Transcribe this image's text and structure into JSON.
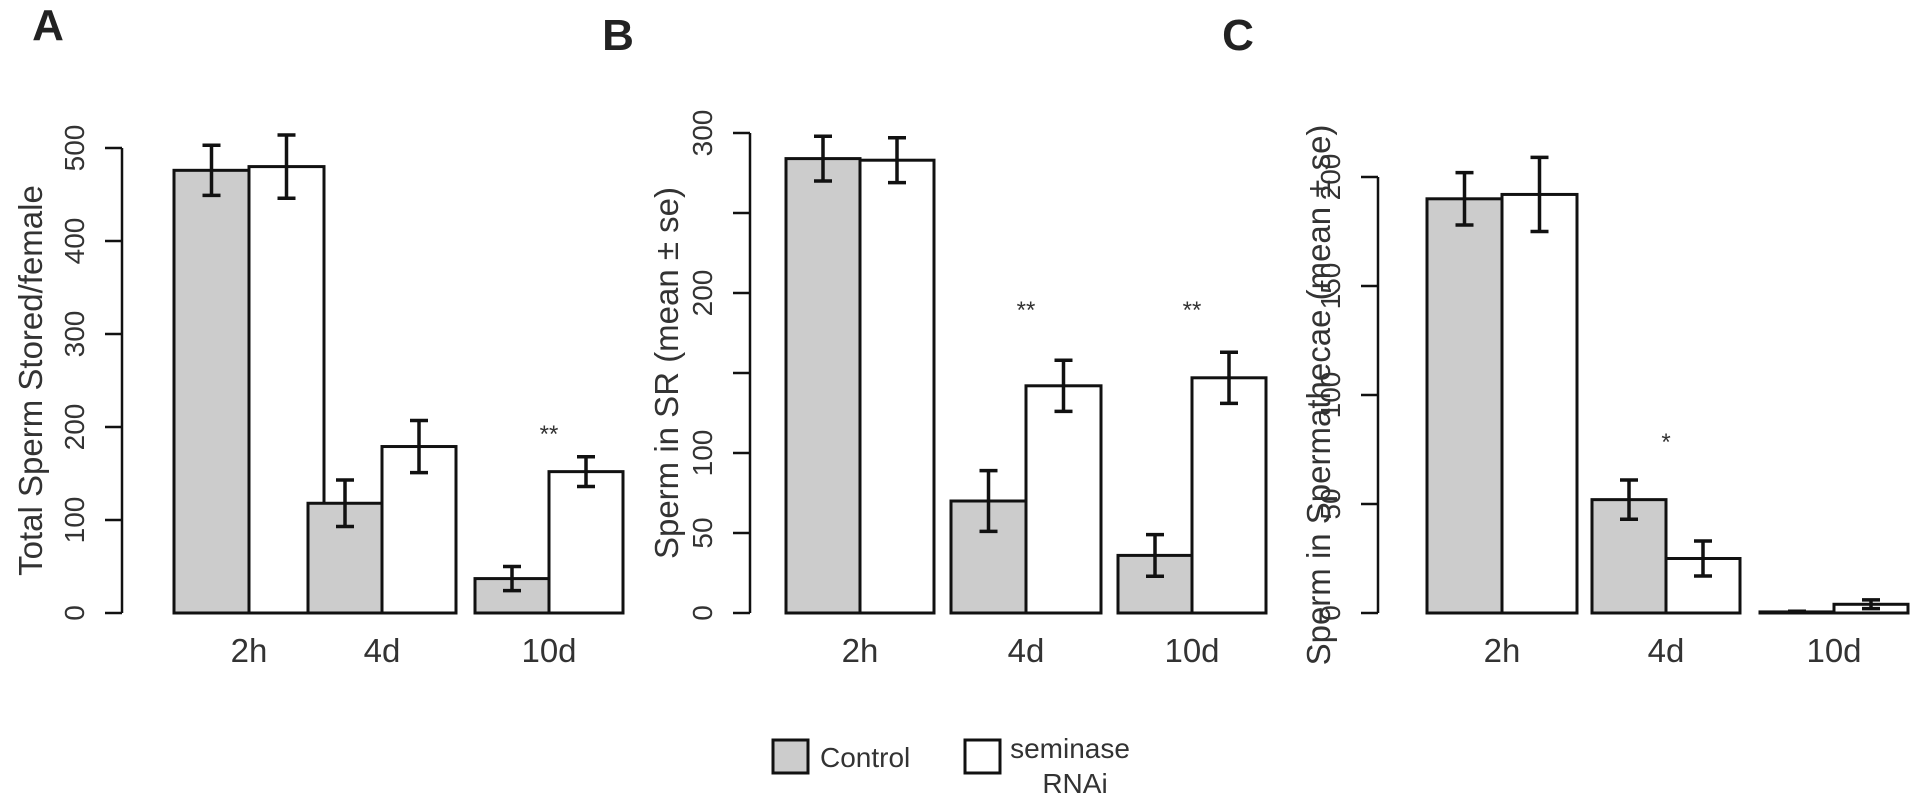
{
  "colors": {
    "control": "#cccccc",
    "treatment": "#ffffff",
    "stroke": "#111111"
  },
  "legend": {
    "items": [
      {
        "label": "Control"
      },
      {
        "label_lines": [
          "seminase",
          "RNAi"
        ]
      }
    ]
  },
  "chart_data": [
    {
      "panel": "A",
      "type": "bar",
      "ylabel": "Total Sperm Stored/female",
      "ylim": [
        0,
        520
      ],
      "yticks": [
        0,
        100,
        200,
        300,
        400,
        500
      ],
      "categories": [
        "2h",
        "4d",
        "10d"
      ],
      "series": [
        {
          "values": [
            476,
            118,
            37
          ],
          "errors": [
            27,
            25,
            13
          ]
        },
        {
          "values": [
            480,
            179,
            152
          ],
          "errors": [
            34,
            28,
            16
          ]
        }
      ],
      "annotations": [
        {
          "category": "10d",
          "text": "**"
        }
      ]
    },
    {
      "panel": "B",
      "type": "bar",
      "ylabel": "Sperm in SR (mean ± se)",
      "ylim": [
        0,
        300
      ],
      "yticks": [
        0,
        50,
        100,
        150,
        200,
        250,
        300
      ],
      "ytick_labels": [
        "0",
        "50",
        "100",
        "",
        "200",
        "",
        "300"
      ],
      "categories": [
        "2h",
        "4d",
        "10d"
      ],
      "series": [
        {
          "values": [
            284,
            70,
            36
          ],
          "errors": [
            14,
            19,
            13
          ]
        },
        {
          "values": [
            283,
            142,
            147
          ],
          "errors": [
            14,
            16,
            16
          ]
        }
      ],
      "annotations": [
        {
          "category": "4d",
          "text": "**"
        },
        {
          "category": "10d",
          "text": "**"
        }
      ]
    },
    {
      "panel": "C",
      "type": "bar",
      "ylabel": "Sperm in Spermathecae (mean ± se)",
      "ylim": [
        0,
        210
      ],
      "yticks": [
        0,
        50,
        100,
        150,
        200
      ],
      "categories": [
        "2h",
        "4d",
        "10d"
      ],
      "series": [
        {
          "values": [
            190,
            52,
            0.5
          ],
          "errors": [
            12,
            9,
            0.3
          ]
        },
        {
          "values": [
            192,
            25,
            4
          ],
          "errors": [
            17,
            8,
            2
          ]
        }
      ],
      "annotations": [
        {
          "category": "4d",
          "text": "*"
        }
      ]
    }
  ]
}
